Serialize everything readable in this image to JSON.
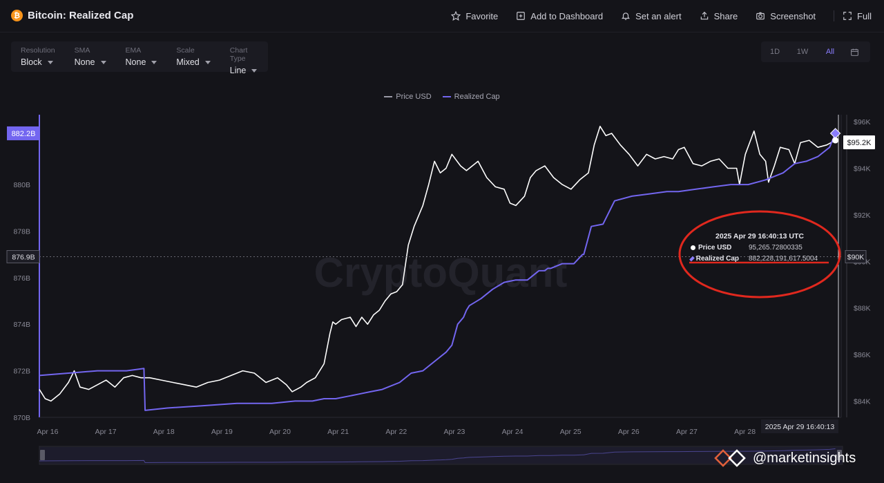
{
  "header": {
    "title": "Bitcoin: Realized Cap",
    "actions": [
      {
        "label": "Favorite",
        "icon": "star-icon"
      },
      {
        "label": "Add to Dashboard",
        "icon": "dashboard-icon"
      },
      {
        "label": "Set an alert",
        "icon": "bell-icon"
      },
      {
        "label": "Share",
        "icon": "share-icon"
      },
      {
        "label": "Screenshot",
        "icon": "camera-icon"
      },
      {
        "label": "Full",
        "icon": "fullscreen-icon"
      }
    ]
  },
  "controls": [
    {
      "label": "Resolution",
      "value": "Block"
    },
    {
      "label": "SMA",
      "value": "None"
    },
    {
      "label": "EMA",
      "value": "None"
    },
    {
      "label": "Scale",
      "value": "Mixed"
    },
    {
      "label": "Chart Type",
      "value": "Line"
    }
  ],
  "ranges": {
    "items": [
      "1D",
      "1W",
      "All"
    ],
    "active": "All"
  },
  "tooltip": {
    "time": "2025 Apr 29 16:40:13 UTC",
    "price_label": "Price USD",
    "price_value": "95,265.72800335",
    "cap_label": "Realized Cap",
    "cap_value": "882,228,191,617.5004"
  },
  "watermark": {
    "chart_text": "CryptoQuant",
    "handle": "@marketinsights"
  },
  "colors": {
    "price": "#ffffff",
    "cap": "#7366f0",
    "annotation": "#e0281e",
    "background": "#141419"
  },
  "chart_data": {
    "type": "line",
    "title": "",
    "legend": {
      "placement": "top-center",
      "entries": [
        "Price USD",
        "Realized Cap"
      ]
    },
    "x_ticks": [
      "Apr 16",
      "Apr 17",
      "Apr 18",
      "Apr 19",
      "Apr 20",
      "Apr 21",
      "Apr 22",
      "Apr 23",
      "Apr 24",
      "Apr 25",
      "Apr 26",
      "Apr 27",
      "Apr 28"
    ],
    "x_range": [
      16,
      29.8
    ],
    "crosshair_x_label": "2025 Apr 29 16:40:13",
    "left_axis": {
      "ticks": [
        "870B",
        "872B",
        "874B",
        "876B",
        "878B",
        "880B"
      ],
      "ylim": [
        870,
        883
      ],
      "unit": "B USD",
      "current_label": "882.2B",
      "crosshair_label": "876.9B"
    },
    "right_axis": {
      "ticks": [
        "$84K",
        "$86K",
        "$88K",
        "$90K",
        "$92K",
        "$94K",
        "$96K"
      ],
      "ylim": [
        83.3,
        96.3
      ],
      "unit": "K USD",
      "current_label": "$95.2K",
      "crosshair_label": "$90K"
    },
    "series": [
      {
        "name": "Price USD",
        "axis": "right",
        "x": [
          16.0,
          16.1,
          16.2,
          16.35,
          16.5,
          16.6,
          16.7,
          16.85,
          17.0,
          17.15,
          17.3,
          17.45,
          17.6,
          17.75,
          17.9,
          18.1,
          18.3,
          18.5,
          18.7,
          18.9,
          19.1,
          19.3,
          19.5,
          19.7,
          19.9,
          20.1,
          20.25,
          20.35,
          20.5,
          20.6,
          20.75,
          20.9,
          21.0,
          21.05,
          21.1,
          21.2,
          21.35,
          21.45,
          21.55,
          21.65,
          21.75,
          21.85,
          21.95,
          22.05,
          22.15,
          22.25,
          22.35,
          22.45,
          22.6,
          22.7,
          22.8,
          22.9,
          23.0,
          23.1,
          23.25,
          23.35,
          23.45,
          23.55,
          23.7,
          23.85,
          24.0,
          24.1,
          24.2,
          24.35,
          24.45,
          24.55,
          24.7,
          24.85,
          25.0,
          25.15,
          25.3,
          25.45,
          25.55,
          25.65,
          25.75,
          25.85,
          26.0,
          26.15,
          26.3,
          26.45,
          26.6,
          26.75,
          26.9,
          27.0,
          27.1,
          27.25,
          27.4,
          27.55,
          27.7,
          27.85,
          28.0,
          28.05,
          28.15,
          28.3,
          28.4,
          28.5,
          28.55,
          28.65,
          28.75,
          28.9,
          29.0,
          29.1,
          29.25,
          29.4,
          29.55,
          29.7
        ],
        "y": [
          84.5,
          84.1,
          84.0,
          84.3,
          84.8,
          85.3,
          84.6,
          84.5,
          84.7,
          84.9,
          84.6,
          85.0,
          85.1,
          85.0,
          85.0,
          84.9,
          84.8,
          84.7,
          84.6,
          84.8,
          84.9,
          85.1,
          85.3,
          85.2,
          84.8,
          85.0,
          84.7,
          84.4,
          84.6,
          84.8,
          85.0,
          85.6,
          86.9,
          87.4,
          87.3,
          87.5,
          87.6,
          87.2,
          87.6,
          87.3,
          87.7,
          87.9,
          88.3,
          88.6,
          88.7,
          89.0,
          90.7,
          91.5,
          92.4,
          93.3,
          94.3,
          93.8,
          94.0,
          94.6,
          94.1,
          93.9,
          94.1,
          94.3,
          93.6,
          93.2,
          93.1,
          92.5,
          92.4,
          92.8,
          93.6,
          93.9,
          94.1,
          93.6,
          93.3,
          93.1,
          93.5,
          93.8,
          95.0,
          95.8,
          95.4,
          95.5,
          95.0,
          94.6,
          94.1,
          94.6,
          94.4,
          94.5,
          94.4,
          94.8,
          94.9,
          94.2,
          94.1,
          94.3,
          94.4,
          94.0,
          94.0,
          93.3,
          94.6,
          95.6,
          94.6,
          94.3,
          93.4,
          94.1,
          94.9,
          94.8,
          94.2,
          95.1,
          95.2,
          94.9,
          95.0,
          95.2
        ]
      },
      {
        "name": "Realized Cap",
        "axis": "left",
        "x": [
          16.0,
          16.5,
          17.0,
          17.5,
          17.8,
          17.82,
          18.2,
          18.8,
          19.4,
          20.0,
          20.4,
          20.7,
          20.9,
          21.1,
          21.3,
          21.5,
          21.7,
          21.9,
          22.0,
          22.2,
          22.4,
          22.6,
          22.8,
          23.0,
          23.1,
          23.2,
          23.3,
          23.35,
          23.4,
          23.6,
          23.8,
          24.0,
          24.2,
          24.4,
          24.6,
          24.7,
          24.75,
          24.8,
          25.0,
          25.2,
          25.35,
          25.37,
          25.5,
          25.7,
          25.9,
          26.2,
          26.5,
          26.8,
          27.0,
          27.3,
          27.6,
          27.9,
          28.2,
          28.5,
          28.8,
          29.0,
          29.2,
          29.4,
          29.6,
          29.7
        ],
        "y": [
          871.8,
          871.9,
          872.0,
          872.0,
          872.1,
          870.3,
          870.4,
          870.5,
          870.6,
          870.6,
          870.7,
          870.7,
          870.8,
          870.8,
          870.9,
          871.0,
          871.1,
          871.2,
          871.3,
          871.5,
          871.9,
          872.0,
          872.4,
          872.8,
          873.1,
          874.0,
          874.3,
          874.6,
          874.8,
          875.1,
          875.5,
          875.8,
          875.9,
          875.9,
          876.3,
          876.3,
          876.4,
          876.4,
          876.6,
          876.6,
          877.0,
          877.0,
          878.2,
          878.3,
          879.3,
          879.5,
          879.6,
          879.7,
          879.7,
          879.8,
          879.9,
          880.0,
          880.0,
          880.2,
          880.5,
          880.9,
          881.0,
          881.2,
          881.6,
          882.2
        ]
      }
    ],
    "annotation": {
      "type": "red-ellipse",
      "target": "tooltip"
    }
  }
}
